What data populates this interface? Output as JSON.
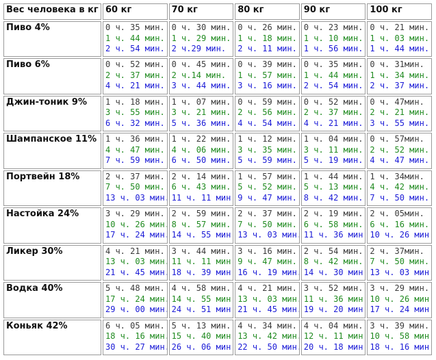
{
  "header": {
    "weight_label": "Вес человека в кг",
    "weights": [
      "60 кг",
      "70 кг",
      "80 кг",
      "90 кг",
      "100 кг"
    ]
  },
  "colors": {
    "line1": "#3a3a3a",
    "line2": "#1f8a1f",
    "line3": "#1a1ad6",
    "border": "#9a9a9a"
  },
  "rows": [
    {
      "drink": "Пиво 4%",
      "cells": [
        [
          "0 ч. 35 мин.",
          "1 ч. 44 мин.",
          "2 ч. 54 мин."
        ],
        [
          "0 ч. 30 мин.",
          "1 ч. 29 мин.",
          "2 ч.29 мин."
        ],
        [
          "0 ч. 26 мин.",
          "1 ч. 18 мин.",
          "2 ч. 11 мин."
        ],
        [
          "0 ч. 23 мин.",
          "1 ч. 10 мин.",
          "1 ч. 56 мин."
        ],
        [
          "0 ч. 21 мин.",
          "1 ч. 03 мин.",
          "1 ч. 44 мин."
        ]
      ]
    },
    {
      "drink": "Пиво 6%",
      "cells": [
        [
          "0 ч. 52 мин.",
          "2 ч. 37 мин.",
          "4 ч. 21 мин."
        ],
        [
          "0 ч. 45 мин.",
          "2 ч.14 мин.",
          "3 ч. 44 мин."
        ],
        [
          "0 ч. 39 мин.",
          "1 ч. 57 мин.",
          "3 ч. 16 мин."
        ],
        [
          "0 ч. 35 мин.",
          "1 ч. 44 мин.",
          "2 ч. 54 мин."
        ],
        [
          "0 ч. 31мин.",
          "1 ч. 34 мин.",
          "2 ч. 37 мин."
        ]
      ]
    },
    {
      "drink": "Джин-тоник 9%",
      "cells": [
        [
          "1 ч. 18 мин.",
          "3 ч. 55 мин.",
          "6 ч. 32 мин."
        ],
        [
          "1 ч. 07 мин.",
          "3 ч. 21 мин.",
          "5 ч. 36 мин."
        ],
        [
          "0 ч. 59 мин.",
          "2 ч. 56 мин.",
          "4 ч. 54 мин."
        ],
        [
          "0 ч. 52 мин.",
          "2 ч. 37 мин.",
          "4 ч. 21 мин."
        ],
        [
          "0 ч. 47мин.",
          "2 ч. 21 мин.",
          "3 ч. 55 мин."
        ]
      ]
    },
    {
      "drink": "Шампанское 11%",
      "cells": [
        [
          "1 ч. 36 мин.",
          "4 ч. 47 мин.",
          "7 ч. 59 мин."
        ],
        [
          "1 ч. 22 мин.",
          "4 ч. 06 мин.",
          "6 ч. 50 мин."
        ],
        [
          "1 ч. 12 мин.",
          "3 ч. 35 мин.",
          "5 ч. 59 мин."
        ],
        [
          "1 ч. 04 мин.",
          "3 ч. 11 мин.",
          "5 ч. 19 мин."
        ],
        [
          "0 ч. 57мин.",
          "2 ч. 52 мин.",
          "4 ч. 47 мин."
        ]
      ]
    },
    {
      "drink": "Портвейн 18%",
      "cells": [
        [
          "2 ч. 37 мин.",
          "7 ч. 50 мин.",
          "13 ч. 03 мин."
        ],
        [
          "2 ч. 14 мин.",
          "6 ч. 43 мин.",
          "11 ч. 11 мин."
        ],
        [
          "1 ч. 57 мин.",
          "5 ч. 52 мин.",
          "9 ч. 47 мин."
        ],
        [
          "1 ч. 44 мин.",
          "5 ч. 13 мин.",
          "8 ч. 42 мин."
        ],
        [
          "1 ч. 34мин.",
          "4 ч. 42 мин.",
          "7 ч. 50 мин."
        ]
      ]
    },
    {
      "drink": "Настойка 24%",
      "cells": [
        [
          "3 ч. 29 мин.",
          "10 ч. 26 мин.",
          "17 ч. 24 мин."
        ],
        [
          "2 ч. 59 мин.",
          "8 ч. 57 мин.",
          "14 ч. 55 мин."
        ],
        [
          "2 ч. 37 мин.",
          "7 ч. 50 мин.",
          "13 ч. 03 мин."
        ],
        [
          "2 ч. 19 мин.",
          "6 ч. 58 мин.",
          "11 ч. 36 мин."
        ],
        [
          "2 ч. 05мин.",
          "6 ч. 16 мин.",
          "10 ч. 26 мин."
        ]
      ]
    },
    {
      "drink": "Ликер 30%",
      "cells": [
        [
          "4 ч. 21 мин.",
          "13 ч. 03 мин.",
          "21 ч. 45 мин."
        ],
        [
          "3 ч. 44 мин.",
          "11 ч. 11 мин.",
          "18 ч. 39 мин."
        ],
        [
          "3 ч. 16 мин.",
          "9 ч. 47 мин.",
          "16 ч. 19 мин."
        ],
        [
          "2 ч. 54 мин.",
          "8 ч. 42 мин.",
          "14 ч. 30 мин."
        ],
        [
          "2 ч. 37мин.",
          "7 ч. 50 мин.",
          "13 ч. 03 мин."
        ]
      ]
    },
    {
      "drink": "Водка 40%",
      "cells": [
        [
          "5 ч. 48 мин.",
          "17 ч. 24 мин.",
          "29 ч. 00 мин."
        ],
        [
          "4 ч. 58 мин.",
          "14 ч. 55 мин.",
          "24 ч. 51 мин."
        ],
        [
          "4 ч. 21 мин.",
          "13 ч. 03 мин.",
          "21 ч. 45 мин."
        ],
        [
          "3 ч. 52 мин.",
          "11 ч. 36 мин.",
          "19 ч. 20 мин."
        ],
        [
          "3 ч. 29 мин.",
          "10 ч. 26 мин.",
          "17 ч. 24 мин."
        ]
      ]
    },
    {
      "drink": "Коньяк 42%",
      "cells": [
        [
          "6 ч. 05 мин.",
          "18 ч. 16 мин.",
          "30 ч. 27 мин."
        ],
        [
          "5 ч. 13 мин.",
          "15 ч. 40 мин.",
          "26 ч. 06 мин."
        ],
        [
          "4 ч. 34 мин.",
          "13 ч. 42 мин.",
          "22 ч. 50 мин."
        ],
        [
          "4 ч. 04 мин.",
          "12 ч. 11 мин.",
          "20 ч. 18 мин."
        ],
        [
          "3 ч. 39 мин.",
          "10 ч. 58 мин.",
          "18 ч. 16 мин."
        ]
      ]
    }
  ]
}
